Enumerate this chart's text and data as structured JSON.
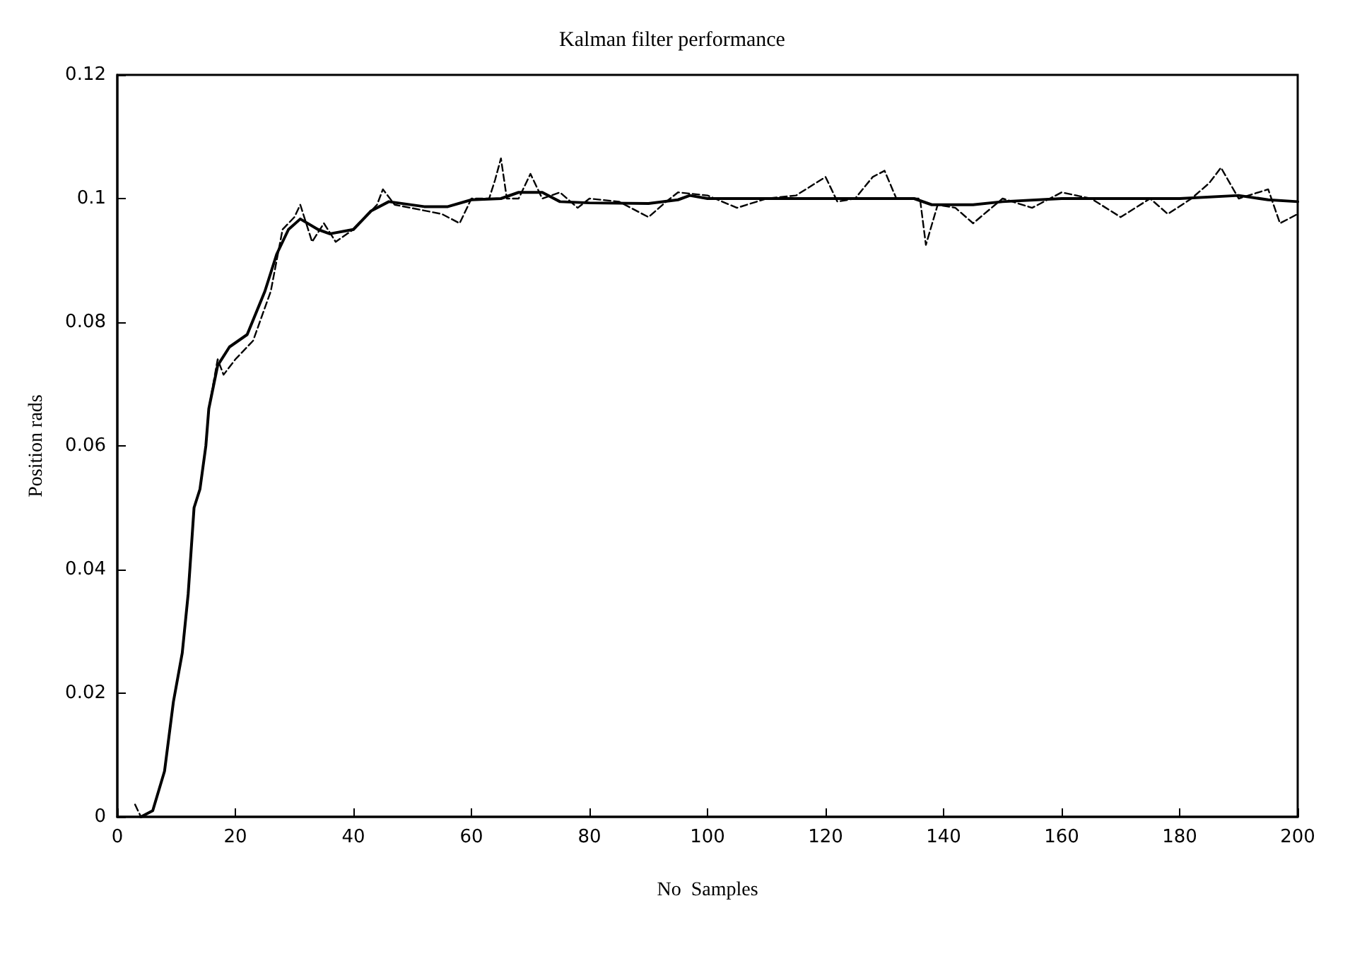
{
  "chart_data": {
    "type": "line",
    "title": "Kalman filter performance",
    "xlabel": "No  Samples",
    "ylabel": "Position rads",
    "xlim": [
      0,
      200
    ],
    "xticks": [
      0,
      20,
      40,
      60,
      80,
      100,
      120,
      140,
      160,
      180,
      200
    ],
    "ylim": [
      0,
      0.12
    ],
    "yticks": [
      0,
      0.02,
      0.04,
      0.06,
      0.08,
      0.1,
      0.12
    ],
    "grid": false,
    "marker": "none",
    "series": [
      {
        "color": "#000000",
        "line_style": "solid",
        "x": [
          4,
          6,
          8,
          9.5,
          11,
          12,
          13,
          14,
          15,
          15.5,
          17,
          19,
          22,
          25,
          27,
          29,
          31,
          34,
          36,
          40,
          43,
          46,
          52,
          56,
          60,
          65,
          68,
          72,
          75,
          80,
          90,
          95,
          97,
          100,
          110,
          120,
          130,
          135,
          138,
          145,
          150,
          160,
          170,
          180,
          190,
          195,
          200
        ],
        "values": [
          0,
          0.001,
          0.0074,
          0.0186,
          0.0265,
          0.036,
          0.05,
          0.053,
          0.06,
          0.066,
          0.073,
          0.076,
          0.078,
          0.085,
          0.091,
          0.095,
          0.0967,
          0.095,
          0.0943,
          0.095,
          0.098,
          0.0995,
          0.0987,
          0.0987,
          0.0998,
          0.1,
          0.101,
          0.101,
          0.0995,
          0.0993,
          0.0992,
          0.0998,
          0.1005,
          0.1,
          0.1,
          0.1,
          0.1,
          0.1,
          0.099,
          0.099,
          0.0995,
          0.1,
          0.1,
          0.1,
          0.1005,
          0.0998,
          0.0995
        ]
      },
      {
        "color": "#000000",
        "line_style": "dashed",
        "x": [
          3,
          4,
          6,
          8,
          9.5,
          11,
          12,
          13,
          14,
          15,
          15.5,
          17,
          18,
          20,
          23,
          26,
          28,
          30,
          31,
          33,
          35,
          37,
          40,
          44,
          45,
          47,
          55,
          58,
          60,
          63,
          64,
          65,
          66,
          68,
          70,
          72,
          75,
          78,
          80,
          85,
          90,
          93,
          95,
          100,
          105,
          110,
          115,
          120,
          122,
          125,
          128,
          130,
          132,
          136,
          137,
          139,
          142,
          145,
          150,
          155,
          160,
          165,
          170,
          175,
          178,
          182,
          185,
          187,
          190,
          195,
          197,
          200
        ],
        "values": [
          0.002,
          0,
          0.001,
          0.0074,
          0.0186,
          0.0265,
          0.036,
          0.05,
          0.053,
          0.06,
          0.066,
          0.074,
          0.0715,
          0.074,
          0.077,
          0.085,
          0.095,
          0.097,
          0.099,
          0.093,
          0.096,
          0.093,
          0.095,
          0.099,
          0.1015,
          0.099,
          0.0975,
          0.096,
          0.1,
          0.1,
          0.103,
          0.1065,
          0.1,
          0.1,
          0.104,
          0.1,
          0.101,
          0.0985,
          0.1,
          0.0995,
          0.097,
          0.0995,
          0.101,
          0.1005,
          0.0985,
          0.1,
          0.1005,
          0.1035,
          0.0995,
          0.1,
          0.1035,
          0.1045,
          0.1,
          0.1,
          0.0925,
          0.099,
          0.0985,
          0.096,
          0.1,
          0.0985,
          0.101,
          0.1,
          0.097,
          0.1,
          0.0975,
          0.1,
          0.1025,
          0.105,
          0.1,
          0.1015,
          0.096,
          0.0975
        ]
      }
    ]
  }
}
